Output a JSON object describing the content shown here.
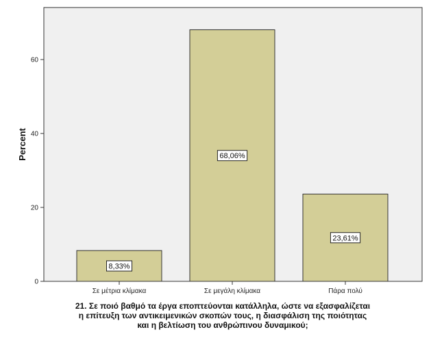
{
  "chart_data": {
    "type": "bar",
    "categories": [
      "Σε μέτρια κλίμακα",
      "Σε μεγάλη κλίμακα",
      "Πάρα πολύ"
    ],
    "values": [
      8.33,
      68.06,
      23.61
    ],
    "data_labels": [
      "8,33%",
      "68,06%",
      "23,61%"
    ],
    "ylabel": "Percent",
    "xlabel_lines": [
      "21. Σε ποιό βαθμό τα έργα εποπτεύονται κατάλληλα, ώστε να εξασφαλίζεται",
      "η επίτευξη των αντικειμενικών σκοπών τους, η διασφάλιση της ποιότητας",
      "και η βελτίωση του ανθρώπινου δυναμικού;"
    ],
    "ylim": [
      0,
      75
    ],
    "yticks": [
      0,
      20,
      40,
      60
    ],
    "grid": false,
    "colors": {
      "bar": "#d3ce97",
      "plot_bg": "#f0f0f0",
      "stroke": "#333333"
    }
  }
}
